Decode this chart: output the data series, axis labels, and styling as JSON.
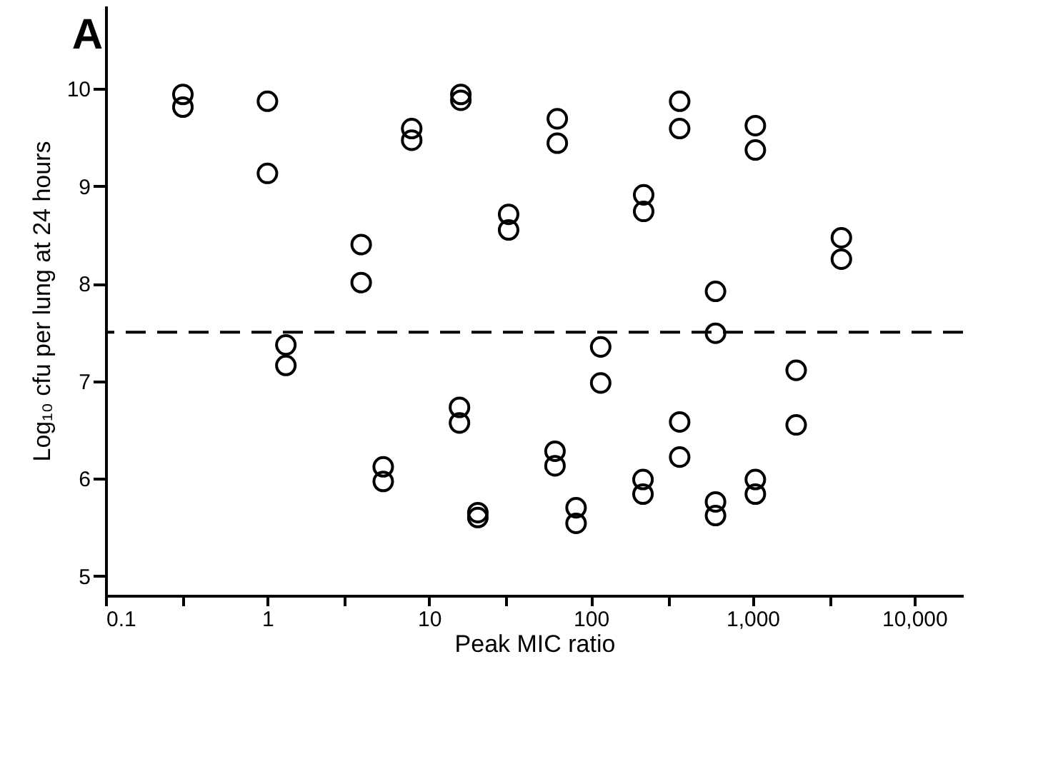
{
  "chart_data": {
    "type": "scatter",
    "title": "A",
    "xlabel": "Peak MIC ratio",
    "ylabel": "Log₁₀ cfu per lung at 24 hours",
    "log": "x",
    "grid": false,
    "legend": false,
    "marker": "circle",
    "xlim": [
      0.1,
      20000
    ],
    "ylim": [
      4.8,
      10.85
    ],
    "xticks": [
      0.1,
      {
        "value": 0.3,
        "label": null
      },
      1,
      {
        "value": 3,
        "label": null
      },
      10,
      {
        "value": 30,
        "label": null
      },
      100,
      {
        "value": 300,
        "label": null
      },
      {
        "value": 1000,
        "label": "1,000"
      },
      {
        "value": 3000,
        "label": null
      },
      {
        "value": 10000,
        "label": "10,000"
      }
    ],
    "yticks": [
      5,
      6,
      7,
      8,
      9,
      10
    ],
    "ref_lines": [
      {
        "axis": "y",
        "value": 7.5,
        "color": "#000000",
        "line_style": "dashed"
      }
    ],
    "series": [
      {
        "color": "#000000",
        "x": [
          0.3,
          0.3,
          1,
          1,
          1.3,
          1.3,
          3.8,
          3.8,
          5.2,
          5.2,
          7.8,
          7.8,
          15.4,
          15.4,
          15.7,
          15.7,
          20,
          20,
          31,
          31,
          60,
          60,
          62,
          62,
          81,
          81,
          115,
          115,
          210,
          210,
          212,
          212,
          354,
          354,
          354,
          354,
          590,
          590,
          590,
          590,
          1040,
          1040,
          1040,
          1040,
          1860,
          1860,
          3540,
          3540
        ],
        "values": [
          9.94,
          9.81,
          9.87,
          9.13,
          7.37,
          7.16,
          8.4,
          8.01,
          6.12,
          5.97,
          9.59,
          9.47,
          6.73,
          6.57,
          9.94,
          9.88,
          5.65,
          5.6,
          8.71,
          8.55,
          6.28,
          6.13,
          9.69,
          9.44,
          5.7,
          5.54,
          7.35,
          6.98,
          5.99,
          5.84,
          8.91,
          8.74,
          9.87,
          9.59,
          6.58,
          6.22,
          7.92,
          7.49,
          5.76,
          5.62,
          9.62,
          9.37,
          5.99,
          5.84,
          7.11,
          6.55,
          8.47,
          8.25
        ]
      }
    ]
  }
}
